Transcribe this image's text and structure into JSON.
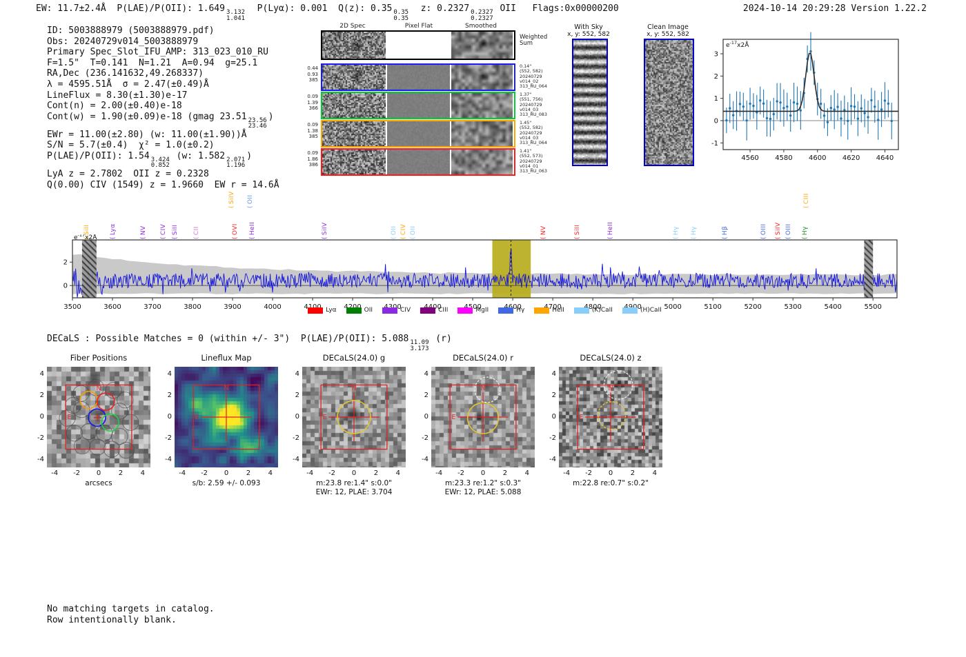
{
  "header": {
    "left_segments": [
      {
        "t": "EW: 11.7±2.4Å  P(LAE)/P(OII): 1.649"
      },
      {
        "hi": "3.132",
        "lo": "1.041"
      },
      {
        "t": "  P(Lyα): 0.001  Q(z): 0.35"
      },
      {
        "hi": "0.35",
        "lo": "0.35"
      },
      {
        "t": "  z: 0.2327"
      },
      {
        "hi": "0.2327",
        "lo": "0.2327"
      },
      {
        "t": " OII   Flags:0x00000200"
      }
    ],
    "right": "2024-10-14 20:29:28  Version 1.22.2"
  },
  "info": {
    "lines": [
      [
        {
          "t": "ID: 5003888979 (5003888979.pdf)"
        }
      ],
      [
        {
          "t": "Obs: 20240729v014_5003888979"
        }
      ],
      [
        {
          "t": "Primary Spec_Slot_IFU_AMP: 313_023_010_RU"
        }
      ],
      [
        {
          "t": "F=1.5\"  T=0.141  N=1.21  A=0.94  g=25.1"
        }
      ],
      [
        {
          "t": "RA,Dec (236.141632,49.268337)"
        }
      ],
      [
        {
          "t": "λ = 4595.51Å  σ = 2.47(±0.49)Å"
        }
      ],
      [
        {
          "t": "LineFlux = 8.30(±1.30)e-17"
        }
      ],
      [
        {
          "t": "Cont(n) = 2.00(±0.40)e-18"
        }
      ],
      [
        {
          "t": "Cont(w) = 1.90(±0.09)e-18 (gmag 23.51"
        },
        {
          "hi": "23.56",
          "lo": "23.46"
        },
        {
          "t": ")"
        }
      ],
      [
        {
          "t": "EWr = 11.00(±2.80) (w: 11.00(±1.90))Å"
        }
      ],
      [
        {
          "t": "S/N = 5.7(±0.4)  χ² = 1.0(±0.2)"
        }
      ],
      [
        {
          "t": "P(LAE)/P(OII): 1.54"
        },
        {
          "hi": "3.424",
          "lo": "0.852"
        },
        {
          "t": " (w: 1.582"
        },
        {
          "hi": "2.071",
          "lo": "1.196"
        },
        {
          "t": ")"
        }
      ],
      [
        {
          "t": "LyA z = 2.7802  OII z = 0.2328"
        }
      ],
      [
        {
          "t": "Q(0.00) CIV (1549) z = 1.9660  EW r = 14.6Å"
        }
      ]
    ]
  },
  "cutouts_2d": {
    "col_titles": [
      "2D Spec",
      "Pixel Flat",
      "Smoothed"
    ],
    "rows": [
      {
        "color": "#000000",
        "left": [],
        "right": [
          "Weighted",
          "Sum"
        ]
      },
      {
        "color": "#1a1aff",
        "left": [
          "0.44",
          "0.93",
          "385"
        ],
        "right": [
          "0.14\"",
          "(552, 582)",
          "20240729",
          "v014_02",
          "313_RU_064"
        ]
      },
      {
        "color": "#00cc33",
        "left": [
          "0.09",
          "1.39",
          "366"
        ],
        "right": [
          "1.37\"",
          "(551, 756)",
          "20240729",
          "v014_03",
          "313_RU_083"
        ]
      },
      {
        "color": "#ffa500",
        "left": [
          "0.09",
          "1.38",
          "385"
        ],
        "right": [
          "1.45\"",
          "(552, 582)",
          "20240729",
          "v014_03",
          "313_RU_064"
        ]
      },
      {
        "color": "#ff1a1a",
        "left": [
          "0.09",
          "1.86",
          "386"
        ],
        "right": [
          "1.41\"",
          "(552, 573)",
          "20240729",
          "v014_01",
          "313_RU_063"
        ]
      }
    ]
  },
  "sky_panels": {
    "with_sky": {
      "title": "With Sky",
      "subtitle": "x, y: 552, 582"
    },
    "clean": {
      "title": "Clean Image",
      "subtitle": "x, y: 552, 582"
    }
  },
  "decals_line_segments": [
    {
      "t": "DECaLS : Possible Matches = 0 (within +/- 3\")  P(LAE)/P(OII): 5.088"
    },
    {
      "hi": "11.09",
      "lo": "3.173"
    },
    {
      "t": " (r)"
    }
  ],
  "panels": [
    {
      "key": "fiber",
      "title": "Fiber Positions",
      "xlabel": "arcsecs",
      "captions": []
    },
    {
      "key": "lineflux",
      "title": "Lineflux Map",
      "captions": [
        "s/b: 2.59 +/- 0.093"
      ]
    },
    {
      "key": "g",
      "title": "DECaLS(24.0) g",
      "captions": [
        "m:23.8  re:1.4\"  s:0.0\"",
        "EWr: 12, PLAE: 3.704"
      ]
    },
    {
      "key": "r",
      "title": "DECaLS(24.0) r",
      "captions": [
        "m:23.3  re:1.2\"  s:0.3\"",
        "EWr: 12, PLAE: 5.088"
      ]
    },
    {
      "key": "z",
      "title": "DECaLS(24.0) z",
      "captions": [
        "m:22.8  re:0.7\"  s:0.2\""
      ]
    }
  ],
  "panel_ticks": [
    -4,
    -2,
    0,
    2,
    4
  ],
  "compass": {
    "n": "N",
    "e": "E"
  },
  "footer": [
    "No matching targets in catalog.",
    "Row intentionally blank."
  ],
  "chart_data": [
    {
      "id": "line_fit_plot",
      "type": "scatter",
      "unit_base": "e",
      "unit_exp": "-17",
      "unit_rest": "x2Å",
      "xlim": [
        4544,
        4648
      ],
      "ylim": [
        -1.3,
        3.65
      ],
      "xticks": [
        4560,
        4580,
        4600,
        4620,
        4640
      ],
      "yticks": [
        -1,
        0,
        1,
        2,
        3
      ],
      "gaussian": {
        "center": 4595.51,
        "sigma": 2.47,
        "peak_amp": 2.65,
        "baseline": 0.42
      },
      "point_color": "#1f77b4",
      "fit_color": "#2a2a2a"
    },
    {
      "id": "full_spectrum",
      "type": "line",
      "unit_base": "e",
      "unit_exp": "-17",
      "unit_rest": "x2Å",
      "xlim": [
        3500,
        5560
      ],
      "ylim": [
        -1.05,
        3.9
      ],
      "xticks": [
        3500,
        3600,
        3700,
        3800,
        3900,
        4000,
        4100,
        4200,
        4300,
        4400,
        4500,
        4600,
        4700,
        4800,
        4900,
        5000,
        5100,
        5200,
        5300,
        5400,
        5500
      ],
      "yticks": [
        0,
        2
      ],
      "detect_wl": 4595.51,
      "highlight_band": [
        4549,
        4645
      ],
      "highlight_color": "#b8ad1c",
      "hatch_bands": [
        [
          3524,
          3560
        ],
        [
          5478,
          5500
        ]
      ],
      "line_color": "#1212dd",
      "error_color": "#c9c9c9",
      "label_bracket": "(",
      "labels": [
        {
          "name": "SiII",
          "wl": 3537,
          "color": "#ffa500",
          "row": 0
        },
        {
          "name": "Lyα",
          "wl": 3601,
          "color": "#8a2be2",
          "row": 0
        },
        {
          "name": "NV",
          "wl": 3677,
          "color": "#8a2be2",
          "row": 0
        },
        {
          "name": "CIV",
          "wl": 3727,
          "color": "#8a2be2",
          "row": 0
        },
        {
          "name": "SiII",
          "wl": 3756,
          "color": "#8a2be2",
          "row": 0
        },
        {
          "name": "CII",
          "wl": 3811,
          "color": "#da70d6",
          "row": 0
        },
        {
          "name": "SiIV",
          "wl": 3899,
          "color": "#ffa500",
          "row": 1
        },
        {
          "name": "OVI",
          "wl": 3906,
          "color": "#ff2222",
          "row": 0
        },
        {
          "name": "OII",
          "wl": 3944,
          "color": "#6495ed",
          "row": 1
        },
        {
          "name": "HeII",
          "wl": 3950,
          "color": "#8a2be2",
          "row": 0
        },
        {
          "name": "SiIV",
          "wl": 4131,
          "color": "#8a2be2",
          "row": 0
        },
        {
          "name": "OII",
          "wl": 4303,
          "color": "#87cefa",
          "row": 0
        },
        {
          "name": "CIV",
          "wl": 4327,
          "color": "#ffa500",
          "row": 0
        },
        {
          "name": "OII",
          "wl": 4352,
          "color": "#87cefa",
          "row": 0
        },
        {
          "name": "NV",
          "wl": 4678,
          "color": "#ff2222",
          "row": 0
        },
        {
          "name": "SiII",
          "wl": 4761,
          "color": "#ff2222",
          "row": 0
        },
        {
          "name": "HeII",
          "wl": 4845,
          "color": "#8a2be2",
          "row": 0
        },
        {
          "name": "Hγ",
          "wl": 5008,
          "color": "#87cefa",
          "row": 0
        },
        {
          "name": "Hγ",
          "wl": 5053,
          "color": "#87cefa",
          "row": 0
        },
        {
          "name": "Hβ",
          "wl": 5131,
          "color": "#4169e1",
          "row": 0
        },
        {
          "name": "OIII",
          "wl": 5228,
          "color": "#4169e1",
          "row": 0
        },
        {
          "name": "SiIV",
          "wl": 5264,
          "color": "#ff2222",
          "row": 0
        },
        {
          "name": "OIII",
          "wl": 5289,
          "color": "#4169e1",
          "row": 0
        },
        {
          "name": "Hγ",
          "wl": 5330,
          "color": "#228b22",
          "row": 0
        },
        {
          "name": "CIII",
          "wl": 5334,
          "color": "#ffa500",
          "row": 1
        }
      ],
      "legend": [
        {
          "label": "Lyα",
          "color": "#ff0000"
        },
        {
          "label": "OII",
          "color": "#008000"
        },
        {
          "label": "CIV",
          "color": "#8a2be2"
        },
        {
          "label": "CIII",
          "color": "#800080"
        },
        {
          "label": "MgII",
          "color": "#ff00ff"
        },
        {
          "label": "Hγ",
          "color": "#4169e1"
        },
        {
          "label": "HeII",
          "color": "#ffa500"
        },
        {
          "label": "(K)CaII",
          "color": "#87cefa"
        },
        {
          "label": "(H)CaII",
          "color": "#87cefa"
        }
      ]
    }
  ]
}
